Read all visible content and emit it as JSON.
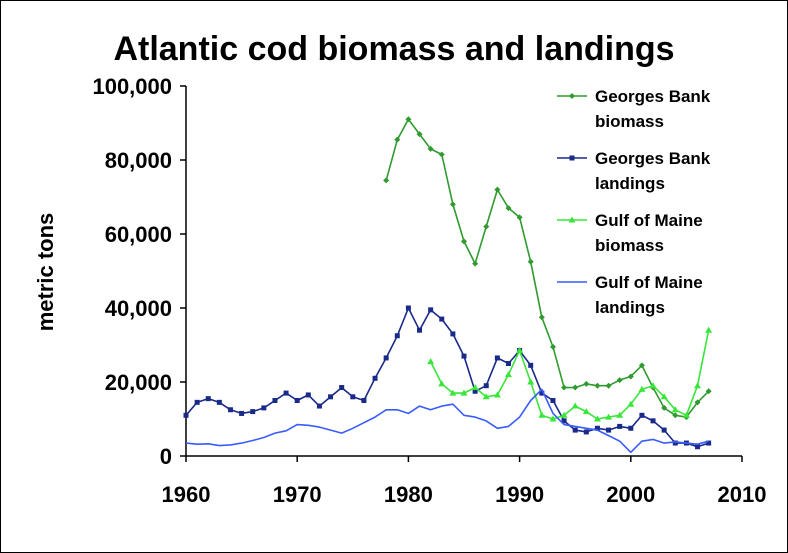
{
  "chart_data": {
    "type": "line",
    "title": "Atlantic cod biomass and landings",
    "xlabel": "",
    "ylabel": "metric tons",
    "xlim": [
      1960,
      2010
    ],
    "ylim": [
      0,
      100000
    ],
    "x_ticks": [
      1960,
      1970,
      1980,
      1990,
      2000,
      2010
    ],
    "x_tick_labels": [
      "1960",
      "1970",
      "1980",
      "1990",
      "2000",
      "2010"
    ],
    "y_ticks": [
      0,
      20000,
      40000,
      60000,
      80000,
      100000
    ],
    "y_tick_labels": [
      "0",
      "20,000",
      "40,000",
      "60,000",
      "80,000",
      "100,000"
    ],
    "grid": false,
    "legend_position": "right",
    "series": [
      {
        "name_lines": [
          "Georges Bank",
          "biomass"
        ],
        "color": "#2f9b2f",
        "marker": "diamond",
        "points": [
          [
            1978,
            74500
          ],
          [
            1979,
            85500
          ],
          [
            1980,
            91000
          ],
          [
            1981,
            87000
          ],
          [
            1982,
            83000
          ],
          [
            1983,
            81500
          ],
          [
            1984,
            68000
          ],
          [
            1985,
            58000
          ],
          [
            1986,
            52000
          ],
          [
            1987,
            62000
          ],
          [
            1988,
            72000
          ],
          [
            1989,
            67000
          ],
          [
            1990,
            64500
          ],
          [
            1991,
            52500
          ],
          [
            1992,
            37500
          ],
          [
            1993,
            29500
          ],
          [
            1994,
            18500
          ],
          [
            1995,
            18500
          ],
          [
            1996,
            19500
          ],
          [
            1997,
            19000
          ],
          [
            1998,
            19000
          ],
          [
            1999,
            20500
          ],
          [
            2000,
            21500
          ],
          [
            2001,
            24500
          ],
          [
            2002,
            18500
          ],
          [
            2003,
            13000
          ],
          [
            2004,
            11000
          ],
          [
            2005,
            10500
          ],
          [
            2006,
            14500
          ],
          [
            2007,
            17500
          ]
        ]
      },
      {
        "name_lines": [
          "Georges Bank",
          "landings"
        ],
        "color": "#1a2a8a",
        "marker": "square",
        "points": [
          [
            1960,
            11000
          ],
          [
            1961,
            14500
          ],
          [
            1962,
            15500
          ],
          [
            1963,
            14500
          ],
          [
            1964,
            12500
          ],
          [
            1965,
            11500
          ],
          [
            1966,
            12000
          ],
          [
            1967,
            13000
          ],
          [
            1968,
            15000
          ],
          [
            1969,
            17000
          ],
          [
            1970,
            15000
          ],
          [
            1971,
            16500
          ],
          [
            1972,
            13500
          ],
          [
            1973,
            16000
          ],
          [
            1974,
            18500
          ],
          [
            1975,
            16000
          ],
          [
            1976,
            15000
          ],
          [
            1977,
            21000
          ],
          [
            1978,
            26500
          ],
          [
            1979,
            32500
          ],
          [
            1980,
            40000
          ],
          [
            1981,
            34000
          ],
          [
            1982,
            39500
          ],
          [
            1983,
            37000
          ],
          [
            1984,
            33000
          ],
          [
            1985,
            27000
          ],
          [
            1986,
            17500
          ],
          [
            1987,
            19000
          ],
          [
            1988,
            26500
          ],
          [
            1989,
            25000
          ],
          [
            1990,
            28500
          ],
          [
            1991,
            24500
          ],
          [
            1992,
            17000
          ],
          [
            1993,
            15000
          ],
          [
            1994,
            9500
          ],
          [
            1995,
            7000
          ],
          [
            1996,
            6500
          ],
          [
            1997,
            7500
          ],
          [
            1998,
            7000
          ],
          [
            1999,
            8000
          ],
          [
            2000,
            7500
          ],
          [
            2001,
            11000
          ],
          [
            2002,
            9500
          ],
          [
            2003,
            7000
          ],
          [
            2004,
            3500
          ],
          [
            2005,
            3500
          ],
          [
            2006,
            2500
          ],
          [
            2007,
            3500
          ]
        ]
      },
      {
        "name_lines": [
          "Gulf of Maine",
          "biomass"
        ],
        "color": "#39e639",
        "marker": "triangle",
        "points": [
          [
            1982,
            25500
          ],
          [
            1983,
            19500
          ],
          [
            1984,
            17000
          ],
          [
            1985,
            17000
          ],
          [
            1986,
            18500
          ],
          [
            1987,
            16000
          ],
          [
            1988,
            16500
          ],
          [
            1989,
            22000
          ],
          [
            1990,
            28500
          ],
          [
            1991,
            20000
          ],
          [
            1992,
            11000
          ],
          [
            1993,
            10000
          ],
          [
            1994,
            11000
          ],
          [
            1995,
            13500
          ],
          [
            1996,
            12000
          ],
          [
            1997,
            10000
          ],
          [
            1998,
            10500
          ],
          [
            1999,
            11000
          ],
          [
            2000,
            14000
          ],
          [
            2001,
            18000
          ],
          [
            2002,
            19000
          ],
          [
            2003,
            16000
          ],
          [
            2004,
            12500
          ],
          [
            2005,
            11000
          ],
          [
            2006,
            19000
          ],
          [
            2007,
            34000
          ]
        ]
      },
      {
        "name_lines": [
          "Gulf of Maine",
          "landings"
        ],
        "color": "#3a5cff",
        "marker": "none",
        "points": [
          [
            1960,
            3500
          ],
          [
            1961,
            3200
          ],
          [
            1962,
            3300
          ],
          [
            1963,
            2800
          ],
          [
            1964,
            3000
          ],
          [
            1965,
            3500
          ],
          [
            1966,
            4200
          ],
          [
            1967,
            5000
          ],
          [
            1968,
            6200
          ],
          [
            1969,
            6800
          ],
          [
            1970,
            8500
          ],
          [
            1971,
            8300
          ],
          [
            1972,
            7800
          ],
          [
            1973,
            7000
          ],
          [
            1974,
            6200
          ],
          [
            1975,
            7500
          ],
          [
            1976,
            9000
          ],
          [
            1977,
            10500
          ],
          [
            1978,
            12500
          ],
          [
            1979,
            12500
          ],
          [
            1980,
            11500
          ],
          [
            1981,
            13500
          ],
          [
            1982,
            12500
          ],
          [
            1983,
            13500
          ],
          [
            1984,
            14000
          ],
          [
            1985,
            11000
          ],
          [
            1986,
            10500
          ],
          [
            1987,
            9500
          ],
          [
            1988,
            7500
          ],
          [
            1989,
            8000
          ],
          [
            1990,
            10500
          ],
          [
            1991,
            15000
          ],
          [
            1992,
            18000
          ],
          [
            1993,
            11500
          ],
          [
            1994,
            8500
          ],
          [
            1995,
            8000
          ],
          [
            1996,
            7500
          ],
          [
            1997,
            7000
          ],
          [
            1998,
            5500
          ],
          [
            1999,
            4000
          ],
          [
            2000,
            1000
          ],
          [
            2001,
            4000
          ],
          [
            2002,
            4500
          ],
          [
            2003,
            3500
          ],
          [
            2004,
            3800
          ],
          [
            2005,
            3500
          ],
          [
            2006,
            3200
          ],
          [
            2007,
            4000
          ]
        ]
      }
    ]
  }
}
